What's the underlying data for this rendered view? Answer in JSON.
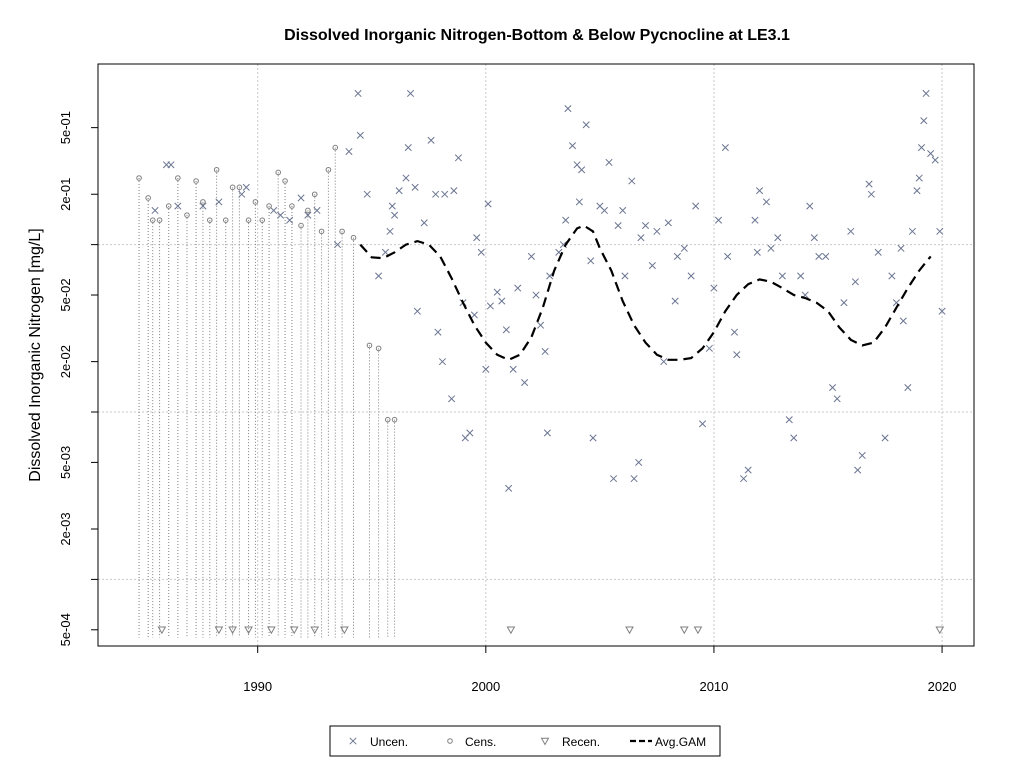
{
  "chart_data": {
    "type": "scatter",
    "title": "Dissolved Inorganic Nitrogen-Bottom & Below Pycnocline at LE3.1",
    "ylabel": "Dissolved Inorganic Nitrogen [mg/L]",
    "xlabel": "",
    "x_ticks": [
      1990,
      2000,
      2010,
      2020
    ],
    "x_tick_labels": [
      "1990",
      "2000",
      "2010",
      "2020"
    ],
    "xlim": [
      1983.0,
      2021.4
    ],
    "y_scale": "log",
    "ylim": [
      0.0004,
      1.2
    ],
    "y_ticks": [
      0.0005,
      0.002,
      0.005,
      0.02,
      0.05,
      0.2,
      0.5
    ],
    "y_tick_labels": [
      "5e-04",
      "2e-03",
      "5e-03",
      "2e-02",
      "5e-02",
      "2e-01",
      "5e-01"
    ],
    "y_grid": [
      0.001,
      0.01,
      0.1
    ],
    "x_grid": [
      1990,
      2000,
      2010,
      2020
    ],
    "grid": true,
    "legend_position": "bottom",
    "legend": [
      {
        "label": "Uncen.",
        "symbol": "x"
      },
      {
        "label": "Cens.",
        "symbol": "circle"
      },
      {
        "label": "Recen.",
        "symbol": "triangle-down"
      },
      {
        "label": "Avg.GAM",
        "symbol": "dashed-line"
      }
    ],
    "colors": {
      "points": "#6a7591",
      "censored": "#7f7f7f",
      "gam": "#000000",
      "grid": "#c8c8c8"
    },
    "series": [
      {
        "name": "Uncen.",
        "points": [
          [
            1985.5,
            0.16
          ],
          [
            1986.0,
            0.3
          ],
          [
            1986.2,
            0.3
          ],
          [
            1986.5,
            0.17
          ],
          [
            1987.6,
            0.17
          ],
          [
            1988.3,
            0.18
          ],
          [
            1989.3,
            0.2
          ],
          [
            1989.5,
            0.22
          ],
          [
            1990.7,
            0.16
          ],
          [
            1991.0,
            0.15
          ],
          [
            1991.4,
            0.14
          ],
          [
            1991.9,
            0.19
          ],
          [
            1992.2,
            0.15
          ],
          [
            1992.6,
            0.16
          ],
          [
            1993.5,
            0.1
          ],
          [
            1994.0,
            0.36
          ],
          [
            1994.4,
            0.8
          ],
          [
            1994.5,
            0.45
          ],
          [
            1994.8,
            0.2
          ],
          [
            1995.3,
            0.065
          ],
          [
            1995.6,
            0.09
          ],
          [
            1995.8,
            0.12
          ],
          [
            1995.9,
            0.17
          ],
          [
            1996.0,
            0.15
          ],
          [
            1996.2,
            0.21
          ],
          [
            1996.5,
            0.25
          ],
          [
            1996.6,
            0.38
          ],
          [
            1996.7,
            0.8
          ],
          [
            1996.9,
            0.22
          ],
          [
            1997.0,
            0.04
          ],
          [
            1997.3,
            0.135
          ],
          [
            1997.6,
            0.42
          ],
          [
            1997.8,
            0.2
          ],
          [
            1997.9,
            0.03
          ],
          [
            1998.1,
            0.02
          ],
          [
            1998.2,
            0.2
          ],
          [
            1998.5,
            0.012
          ],
          [
            1998.6,
            0.21
          ],
          [
            1998.8,
            0.33
          ],
          [
            1999.0,
            0.045
          ],
          [
            1999.1,
            0.007
          ],
          [
            1999.3,
            0.0075
          ],
          [
            1999.5,
            0.038
          ],
          [
            1999.6,
            0.11
          ],
          [
            1999.8,
            0.09
          ],
          [
            2000.0,
            0.018
          ],
          [
            2000.1,
            0.175
          ],
          [
            2000.2,
            0.043
          ],
          [
            2000.5,
            0.052
          ],
          [
            2000.7,
            0.046
          ],
          [
            2000.9,
            0.031
          ],
          [
            2001.0,
            0.0035
          ],
          [
            2001.2,
            0.018
          ],
          [
            2001.4,
            0.055
          ],
          [
            2001.7,
            0.015
          ],
          [
            2002.0,
            0.085
          ],
          [
            2002.2,
            0.05
          ],
          [
            2002.4,
            0.033
          ],
          [
            2002.6,
            0.023
          ],
          [
            2002.7,
            0.0075
          ],
          [
            2002.8,
            0.065
          ],
          [
            2003.2,
            0.09
          ],
          [
            2003.4,
            0.1
          ],
          [
            2003.5,
            0.14
          ],
          [
            2003.6,
            0.65
          ],
          [
            2003.8,
            0.39
          ],
          [
            2004.0,
            0.3
          ],
          [
            2004.1,
            0.18
          ],
          [
            2004.2,
            0.28
          ],
          [
            2004.4,
            0.52
          ],
          [
            2004.6,
            0.08
          ],
          [
            2004.7,
            0.007
          ],
          [
            2005.0,
            0.17
          ],
          [
            2005.2,
            0.16
          ],
          [
            2005.4,
            0.31
          ],
          [
            2005.6,
            0.004
          ],
          [
            2005.8,
            0.13
          ],
          [
            2006.0,
            0.16
          ],
          [
            2006.1,
            0.065
          ],
          [
            2006.4,
            0.24
          ],
          [
            2006.5,
            0.004
          ],
          [
            2006.7,
            0.005
          ],
          [
            2006.8,
            0.11
          ],
          [
            2007.0,
            0.13
          ],
          [
            2007.3,
            0.075
          ],
          [
            2007.5,
            0.12
          ],
          [
            2007.8,
            0.02
          ],
          [
            2008.0,
            0.135
          ],
          [
            2008.3,
            0.046
          ],
          [
            2008.4,
            0.085
          ],
          [
            2008.7,
            0.095
          ],
          [
            2009.0,
            0.065
          ],
          [
            2009.2,
            0.17
          ],
          [
            2009.5,
            0.0085
          ],
          [
            2009.8,
            0.024
          ],
          [
            2010.0,
            0.055
          ],
          [
            2010.2,
            0.14
          ],
          [
            2010.5,
            0.38
          ],
          [
            2010.6,
            0.085
          ],
          [
            2010.9,
            0.03
          ],
          [
            2011.0,
            0.022
          ],
          [
            2011.3,
            0.004
          ],
          [
            2011.5,
            0.0045
          ],
          [
            2011.8,
            0.14
          ],
          [
            2011.9,
            0.09
          ],
          [
            2012.0,
            0.21
          ],
          [
            2012.3,
            0.18
          ],
          [
            2012.5,
            0.095
          ],
          [
            2012.8,
            0.11
          ],
          [
            2013.0,
            0.065
          ],
          [
            2013.3,
            0.009
          ],
          [
            2013.5,
            0.007
          ],
          [
            2013.8,
            0.065
          ],
          [
            2014.0,
            0.05
          ],
          [
            2014.2,
            0.17
          ],
          [
            2014.4,
            0.11
          ],
          [
            2014.6,
            0.085
          ],
          [
            2014.9,
            0.085
          ],
          [
            2015.2,
            0.014
          ],
          [
            2015.4,
            0.012
          ],
          [
            2015.7,
            0.045
          ],
          [
            2016.0,
            0.12
          ],
          [
            2016.2,
            0.06
          ],
          [
            2016.3,
            0.0045
          ],
          [
            2016.5,
            0.0055
          ],
          [
            2016.8,
            0.23
          ],
          [
            2016.9,
            0.2
          ],
          [
            2017.2,
            0.09
          ],
          [
            2017.5,
            0.007
          ],
          [
            2017.8,
            0.065
          ],
          [
            2018.0,
            0.045
          ],
          [
            2018.2,
            0.095
          ],
          [
            2018.3,
            0.035
          ],
          [
            2018.5,
            0.014
          ],
          [
            2018.7,
            0.12
          ],
          [
            2018.9,
            0.21
          ],
          [
            2019.0,
            0.25
          ],
          [
            2019.1,
            0.38
          ],
          [
            2019.2,
            0.55
          ],
          [
            2019.3,
            0.8
          ],
          [
            2019.5,
            0.35
          ],
          [
            2019.7,
            0.32
          ],
          [
            2019.9,
            0.12
          ],
          [
            2020.0,
            0.04
          ]
        ]
      },
      {
        "name": "Cens.",
        "points": [
          [
            1984.8,
            0.25
          ],
          [
            1985.2,
            0.19
          ],
          [
            1985.4,
            0.14
          ],
          [
            1985.7,
            0.14
          ],
          [
            1986.1,
            0.17
          ],
          [
            1986.5,
            0.25
          ],
          [
            1986.9,
            0.15
          ],
          [
            1987.3,
            0.24
          ],
          [
            1987.6,
            0.18
          ],
          [
            1987.9,
            0.14
          ],
          [
            1988.2,
            0.28
          ],
          [
            1988.6,
            0.14
          ],
          [
            1988.9,
            0.22
          ],
          [
            1989.2,
            0.22
          ],
          [
            1989.6,
            0.14
          ],
          [
            1989.9,
            0.18
          ],
          [
            1990.2,
            0.14
          ],
          [
            1990.5,
            0.17
          ],
          [
            1990.9,
            0.27
          ],
          [
            1991.2,
            0.24
          ],
          [
            1991.5,
            0.17
          ],
          [
            1991.9,
            0.13
          ],
          [
            1992.2,
            0.16
          ],
          [
            1992.5,
            0.2
          ],
          [
            1992.8,
            0.12
          ],
          [
            1993.1,
            0.28
          ],
          [
            1993.4,
            0.38
          ],
          [
            1993.7,
            0.12
          ],
          [
            1994.2,
            0.11
          ],
          [
            1994.9,
            0.025
          ],
          [
            1995.3,
            0.024
          ],
          [
            1995.7,
            0.009
          ],
          [
            1996.0,
            0.009
          ]
        ]
      },
      {
        "name": "Recen.",
        "points": [
          [
            1985.8,
            0.0005
          ],
          [
            1988.3,
            0.0005
          ],
          [
            1988.9,
            0.0005
          ],
          [
            1989.6,
            0.0005
          ],
          [
            1990.6,
            0.0005
          ],
          [
            1991.6,
            0.0005
          ],
          [
            1992.5,
            0.0005
          ],
          [
            1993.8,
            0.0005
          ],
          [
            2001.1,
            0.0005
          ],
          [
            2006.3,
            0.0005
          ],
          [
            2008.7,
            0.0005
          ],
          [
            2009.3,
            0.0005
          ],
          [
            2019.9,
            0.0005
          ]
        ]
      },
      {
        "name": "Avg.GAM",
        "points": [
          [
            1994.5,
            0.1
          ],
          [
            1995.0,
            0.084
          ],
          [
            1995.5,
            0.083
          ],
          [
            1996.0,
            0.09
          ],
          [
            1996.5,
            0.1
          ],
          [
            1997.0,
            0.105
          ],
          [
            1997.5,
            0.1
          ],
          [
            1998.0,
            0.085
          ],
          [
            1998.5,
            0.063
          ],
          [
            1999.0,
            0.045
          ],
          [
            1999.5,
            0.033
          ],
          [
            2000.0,
            0.026
          ],
          [
            2000.5,
            0.022
          ],
          [
            2001.0,
            0.0205
          ],
          [
            2001.5,
            0.022
          ],
          [
            2002.0,
            0.028
          ],
          [
            2002.5,
            0.042
          ],
          [
            2003.0,
            0.07
          ],
          [
            2003.5,
            0.1
          ],
          [
            2004.0,
            0.125
          ],
          [
            2004.3,
            0.13
          ],
          [
            2004.7,
            0.12
          ],
          [
            2005.0,
            0.095
          ],
          [
            2005.5,
            0.07
          ],
          [
            2006.0,
            0.046
          ],
          [
            2006.5,
            0.033
          ],
          [
            2007.0,
            0.026
          ],
          [
            2007.5,
            0.022
          ],
          [
            2008.0,
            0.0205
          ],
          [
            2008.5,
            0.0205
          ],
          [
            2009.0,
            0.021
          ],
          [
            2009.5,
            0.024
          ],
          [
            2010.0,
            0.03
          ],
          [
            2010.5,
            0.04
          ],
          [
            2011.0,
            0.05
          ],
          [
            2011.5,
            0.058
          ],
          [
            2012.0,
            0.062
          ],
          [
            2012.5,
            0.06
          ],
          [
            2013.0,
            0.055
          ],
          [
            2013.5,
            0.05
          ],
          [
            2014.0,
            0.048
          ],
          [
            2014.5,
            0.045
          ],
          [
            2015.0,
            0.04
          ],
          [
            2015.5,
            0.032
          ],
          [
            2016.0,
            0.027
          ],
          [
            2016.5,
            0.025
          ],
          [
            2017.0,
            0.026
          ],
          [
            2017.5,
            0.032
          ],
          [
            2018.0,
            0.042
          ],
          [
            2018.5,
            0.055
          ],
          [
            2019.0,
            0.07
          ],
          [
            2019.5,
            0.085
          ]
        ]
      }
    ]
  }
}
